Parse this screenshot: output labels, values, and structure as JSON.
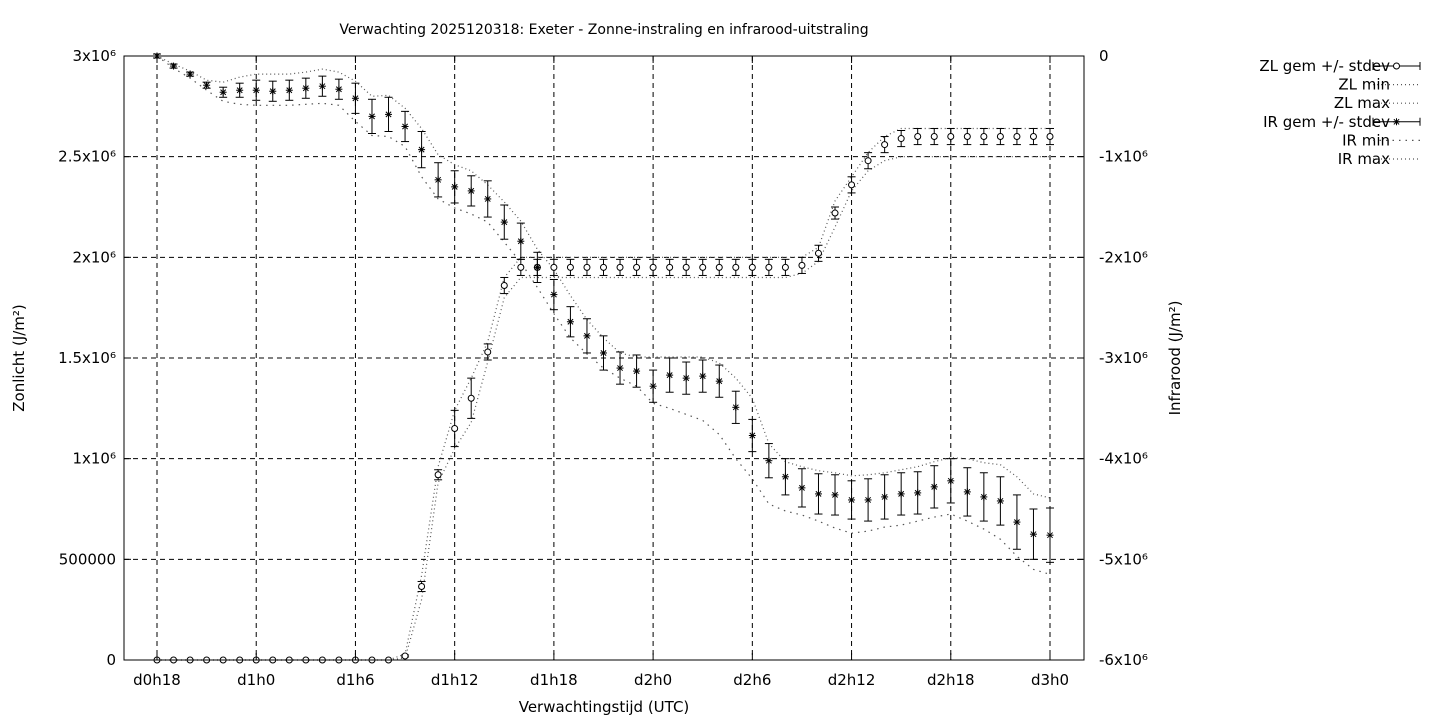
{
  "chart_data": {
    "type": "line",
    "title": "Verwachting 2025120318: Exeter - Zonne-instraling en infrarood-uitstraling",
    "xlabel": "Verwachtingstijd (UTC)",
    "ylabel": "Zonlicht (J/m²)",
    "y2label": "Infrarood (J/m²)",
    "x_ticks": [
      "d0h18",
      "d1h0",
      "d1h6",
      "d1h12",
      "d1h18",
      "d2h0",
      "d2h6",
      "d2h12",
      "d2h18",
      "d3h0"
    ],
    "x_tick_hours": [
      18,
      24,
      30,
      36,
      42,
      48,
      54,
      60,
      66,
      72
    ],
    "xlim_hours": [
      18,
      72
    ],
    "ylim": [
      0,
      3000000
    ],
    "y_ticks": [
      {
        "v": 0,
        "label": "0"
      },
      {
        "v": 500000,
        "label": "500000"
      },
      {
        "v": 1000000,
        "label": "1x10⁶"
      },
      {
        "v": 1500000,
        "label": "1.5x10⁶"
      },
      {
        "v": 2000000,
        "label": "2x10⁶"
      },
      {
        "v": 2500000,
        "label": "2.5x10⁶"
      },
      {
        "v": 3000000,
        "label": "3x10⁶"
      }
    ],
    "y2lim": [
      -6000000,
      0
    ],
    "y2_ticks": [
      {
        "v": 0,
        "label": "0"
      },
      {
        "v": -1000000,
        "label": "-1x10⁶"
      },
      {
        "v": -2000000,
        "label": "-2x10⁶"
      },
      {
        "v": -3000000,
        "label": "-3x10⁶"
      },
      {
        "v": -4000000,
        "label": "-4x10⁶"
      },
      {
        "v": -5000000,
        "label": "-5x10⁶"
      },
      {
        "v": -6000000,
        "label": "-6x10⁶"
      }
    ],
    "grid": true,
    "legend_position": "outside-top-right",
    "x_hours": [
      18,
      19,
      20,
      21,
      22,
      23,
      24,
      25,
      26,
      27,
      28,
      29,
      30,
      31,
      32,
      33,
      34,
      35,
      36,
      37,
      38,
      39,
      40,
      41,
      42,
      43,
      44,
      45,
      46,
      47,
      48,
      49,
      50,
      51,
      52,
      53,
      54,
      55,
      56,
      57,
      58,
      59,
      60,
      61,
      62,
      63,
      64,
      65,
      66,
      67,
      68,
      69,
      70,
      71,
      72
    ],
    "series": [
      {
        "name": "ZL gem +/- stdev",
        "axis": "y1",
        "marker": "circle",
        "mean": [
          0,
          0,
          0,
          0,
          0,
          0,
          0,
          0,
          0,
          0,
          0,
          0,
          0,
          0,
          0,
          20000,
          365000,
          920000,
          1150000,
          1300000,
          1530000,
          1860000,
          1950000,
          1950000,
          1950000,
          1950000,
          1950000,
          1950000,
          1950000,
          1950000,
          1950000,
          1950000,
          1950000,
          1950000,
          1950000,
          1950000,
          1950000,
          1950000,
          1950000,
          1960000,
          2020000,
          2220000,
          2360000,
          2480000,
          2560000,
          2590000,
          2600000,
          2600000,
          2600000,
          2600000,
          2600000,
          2600000,
          2600000,
          2600000,
          2600000
        ],
        "stdev": [
          0,
          0,
          0,
          0,
          0,
          0,
          0,
          0,
          0,
          0,
          0,
          0,
          0,
          0,
          0,
          5000,
          25000,
          25000,
          90000,
          100000,
          40000,
          40000,
          40000,
          40000,
          40000,
          40000,
          40000,
          40000,
          40000,
          40000,
          40000,
          40000,
          40000,
          40000,
          40000,
          40000,
          40000,
          40000,
          40000,
          40000,
          40000,
          30000,
          40000,
          40000,
          40000,
          40000,
          40000,
          40000,
          40000,
          40000,
          40000,
          40000,
          40000,
          40000,
          40000
        ]
      },
      {
        "name": "ZL min",
        "axis": "y1",
        "style": "dotted",
        "values": [
          0,
          0,
          0,
          0,
          0,
          0,
          0,
          0,
          0,
          0,
          0,
          0,
          0,
          0,
          0,
          10000,
          300000,
          880000,
          1050000,
          1180000,
          1480000,
          1800000,
          1900000,
          1900000,
          1900000,
          1900000,
          1900000,
          1900000,
          1900000,
          1900000,
          1900000,
          1900000,
          1900000,
          1900000,
          1900000,
          1900000,
          1900000,
          1900000,
          1900000,
          1920000,
          1980000,
          2150000,
          2330000,
          2430000,
          2480000,
          2500000,
          2500000,
          2500000,
          2500000,
          2500000,
          2500000,
          2500000,
          2500000,
          2500000,
          2500000
        ]
      },
      {
        "name": "ZL max",
        "axis": "y1",
        "style": "dotted",
        "values": [
          0,
          0,
          0,
          0,
          0,
          0,
          0,
          0,
          0,
          0,
          0,
          0,
          0,
          0,
          0,
          30000,
          420000,
          960000,
          1240000,
          1400000,
          1580000,
          1900000,
          2000000,
          2000000,
          2000000,
          2000000,
          2000000,
          2000000,
          2000000,
          2000000,
          2000000,
          2000000,
          2000000,
          2000000,
          2000000,
          2000000,
          2000000,
          2000000,
          2000000,
          2000000,
          2050000,
          2280000,
          2400000,
          2520000,
          2600000,
          2640000,
          2640000,
          2640000,
          2640000,
          2640000,
          2640000,
          2640000,
          2640000,
          2640000,
          2640000
        ]
      },
      {
        "name": "IR gem +/- stdev",
        "axis": "y2",
        "marker": "star",
        "mean": [
          0,
          -100000,
          -180000,
          -290000,
          -360000,
          -340000,
          -340000,
          -350000,
          -340000,
          -320000,
          -300000,
          -330000,
          -420000,
          -600000,
          -580000,
          -700000,
          -930000,
          -1230000,
          -1300000,
          -1340000,
          -1420000,
          -1650000,
          -1840000,
          -2100000,
          -2370000,
          -2640000,
          -2780000,
          -2950000,
          -3100000,
          -3130000,
          -3280000,
          -3170000,
          -3200000,
          -3180000,
          -3230000,
          -3490000,
          -3770000,
          -4020000,
          -4180000,
          -4290000,
          -4350000,
          -4360000,
          -4410000,
          -4410000,
          -4380000,
          -4350000,
          -4340000,
          -4280000,
          -4220000,
          -4330000,
          -4380000,
          -4420000,
          -4630000,
          -4750000,
          -4760000
        ],
        "stdev": [
          20000,
          20000,
          20000,
          30000,
          50000,
          70000,
          100000,
          100000,
          100000,
          100000,
          100000,
          100000,
          150000,
          170000,
          170000,
          150000,
          180000,
          170000,
          160000,
          150000,
          180000,
          170000,
          180000,
          150000,
          150000,
          150000,
          170000,
          170000,
          160000,
          160000,
          160000,
          170000,
          160000,
          160000,
          160000,
          160000,
          160000,
          170000,
          180000,
          190000,
          200000,
          200000,
          190000,
          210000,
          220000,
          210000,
          210000,
          210000,
          220000,
          240000,
          240000,
          240000,
          270000,
          250000,
          270000
        ]
      },
      {
        "name": "IR min",
        "axis": "y2",
        "style": "dotted",
        "values": [
          0,
          -120000,
          -220000,
          -340000,
          -450000,
          -480000,
          -490000,
          -490000,
          -490000,
          -480000,
          -470000,
          -490000,
          -650000,
          -790000,
          -800000,
          -900000,
          -1200000,
          -1420000,
          -1510000,
          -1570000,
          -1650000,
          -1850000,
          -2050000,
          -2300000,
          -2560000,
          -2800000,
          -2960000,
          -3100000,
          -3200000,
          -3280000,
          -3450000,
          -3500000,
          -3560000,
          -3620000,
          -3760000,
          -4000000,
          -4200000,
          -4450000,
          -4520000,
          -4560000,
          -4620000,
          -4690000,
          -4740000,
          -4720000,
          -4680000,
          -4660000,
          -4620000,
          -4580000,
          -4550000,
          -4620000,
          -4700000,
          -4800000,
          -4970000,
          -5100000,
          -5150000
        ]
      },
      {
        "name": "IR max",
        "axis": "y2",
        "style": "dotted",
        "values": [
          0,
          -80000,
          -150000,
          -240000,
          -260000,
          -210000,
          -180000,
          -180000,
          -180000,
          -160000,
          -130000,
          -160000,
          -250000,
          -400000,
          -390000,
          -520000,
          -720000,
          -980000,
          -1080000,
          -1140000,
          -1280000,
          -1450000,
          -1640000,
          -1920000,
          -2120000,
          -2380000,
          -2620000,
          -2800000,
          -2950000,
          -2990000,
          -2990000,
          -2990000,
          -2990000,
          -2990000,
          -3050000,
          -3200000,
          -3400000,
          -3850000,
          -4030000,
          -4080000,
          -4120000,
          -4140000,
          -4170000,
          -4160000,
          -4140000,
          -4110000,
          -4080000,
          -4030000,
          -3990000,
          -4000000,
          -4040000,
          -4060000,
          -4180000,
          -4350000,
          -4390000
        ]
      }
    ]
  }
}
